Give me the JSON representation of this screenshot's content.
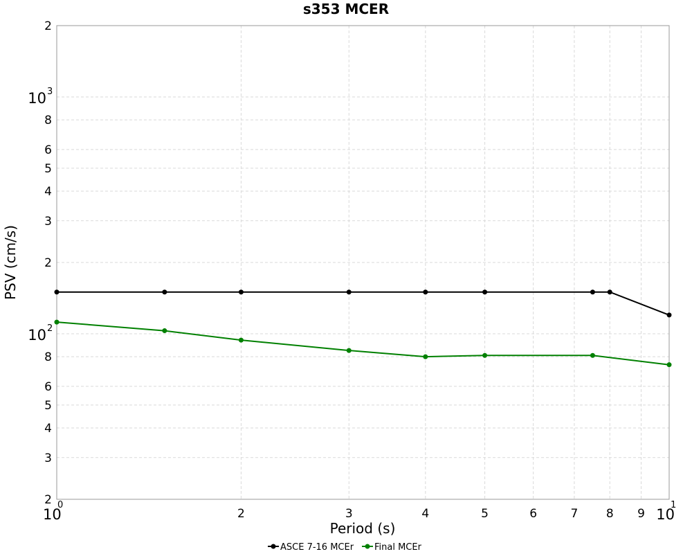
{
  "chart_data": {
    "type": "line",
    "title": "s353 MCER",
    "xlabel": "Period (s)",
    "ylabel": "PSV (cm/s)",
    "x_scale": "log",
    "y_scale": "log",
    "xlim": [
      1,
      10
    ],
    "ylim": [
      20,
      2000
    ],
    "grid": true,
    "legend_placement": "bottom-center",
    "x_minor_ticks": [
      {
        "value": 2,
        "label": "2"
      },
      {
        "value": 3,
        "label": "3"
      },
      {
        "value": 4,
        "label": "4"
      },
      {
        "value": 5,
        "label": "5"
      },
      {
        "value": 6,
        "label": "6"
      },
      {
        "value": 7,
        "label": "7"
      },
      {
        "value": 8,
        "label": "8"
      },
      {
        "value": 9,
        "label": "9"
      }
    ],
    "x_decade_ticks": [
      {
        "value": 1,
        "base": "10",
        "exp": "0"
      },
      {
        "value": 10,
        "base": "10",
        "exp": "1"
      }
    ],
    "y_minor_ticks": [
      {
        "value": 20,
        "label": "2"
      },
      {
        "value": 30,
        "label": "3"
      },
      {
        "value": 40,
        "label": "4"
      },
      {
        "value": 50,
        "label": "5"
      },
      {
        "value": 60,
        "label": "6"
      },
      {
        "value": 80,
        "label": "8"
      },
      {
        "value": 200,
        "label": "2"
      },
      {
        "value": 300,
        "label": "3"
      },
      {
        "value": 400,
        "label": "4"
      },
      {
        "value": 500,
        "label": "5"
      },
      {
        "value": 600,
        "label": "6"
      },
      {
        "value": 800,
        "label": "8"
      },
      {
        "value": 2000,
        "label": "2"
      }
    ],
    "y_decade_ticks": [
      {
        "value": 100,
        "base": "10",
        "exp": "2"
      },
      {
        "value": 1000,
        "base": "10",
        "exp": "3"
      }
    ],
    "series": [
      {
        "name": "ASCE 7-16 MCEr",
        "color": "#000000",
        "x": [
          1,
          1.5,
          2,
          3,
          4,
          5,
          7.5,
          8,
          10
        ],
        "y": [
          150,
          150,
          150,
          150,
          150,
          150,
          150,
          150,
          120
        ]
      },
      {
        "name": "Final MCEr",
        "color": "#008000",
        "x": [
          1,
          1.5,
          2,
          3,
          4,
          5,
          7.5,
          10
        ],
        "y": [
          112,
          103,
          94,
          85,
          80,
          81,
          81,
          74
        ]
      }
    ]
  }
}
